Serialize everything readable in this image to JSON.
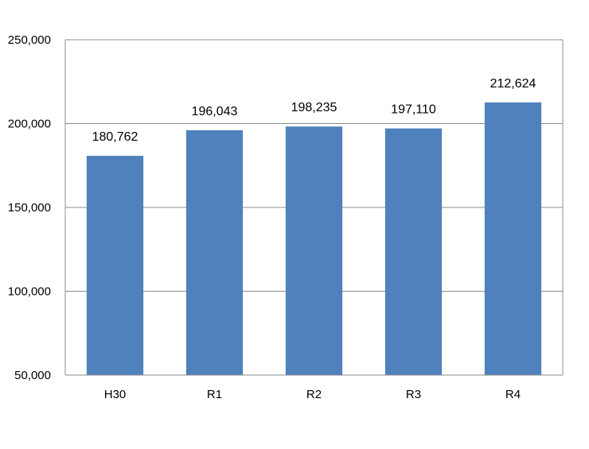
{
  "chart_data": {
    "type": "bar",
    "title": "",
    "xlabel": "",
    "ylabel": "",
    "categories": [
      "H30",
      "R1",
      "R2",
      "R3",
      "R4"
    ],
    "values": [
      180762,
      196043,
      198235,
      197110,
      212624
    ],
    "value_labels": [
      "180,762",
      "196,043",
      "198,235",
      "197,110",
      "212,624"
    ],
    "ylim": [
      50000,
      250000
    ],
    "yticks": [
      50000,
      100000,
      150000,
      200000,
      250000
    ],
    "ytick_labels": [
      "50,000",
      "100,000",
      "150,000",
      "200,000",
      "250,000"
    ],
    "grid": true,
    "legend": "none",
    "colors": {
      "bar": "#4F81BD",
      "gridline": "#8C8C8C",
      "frame": "#8C8C8C"
    }
  }
}
